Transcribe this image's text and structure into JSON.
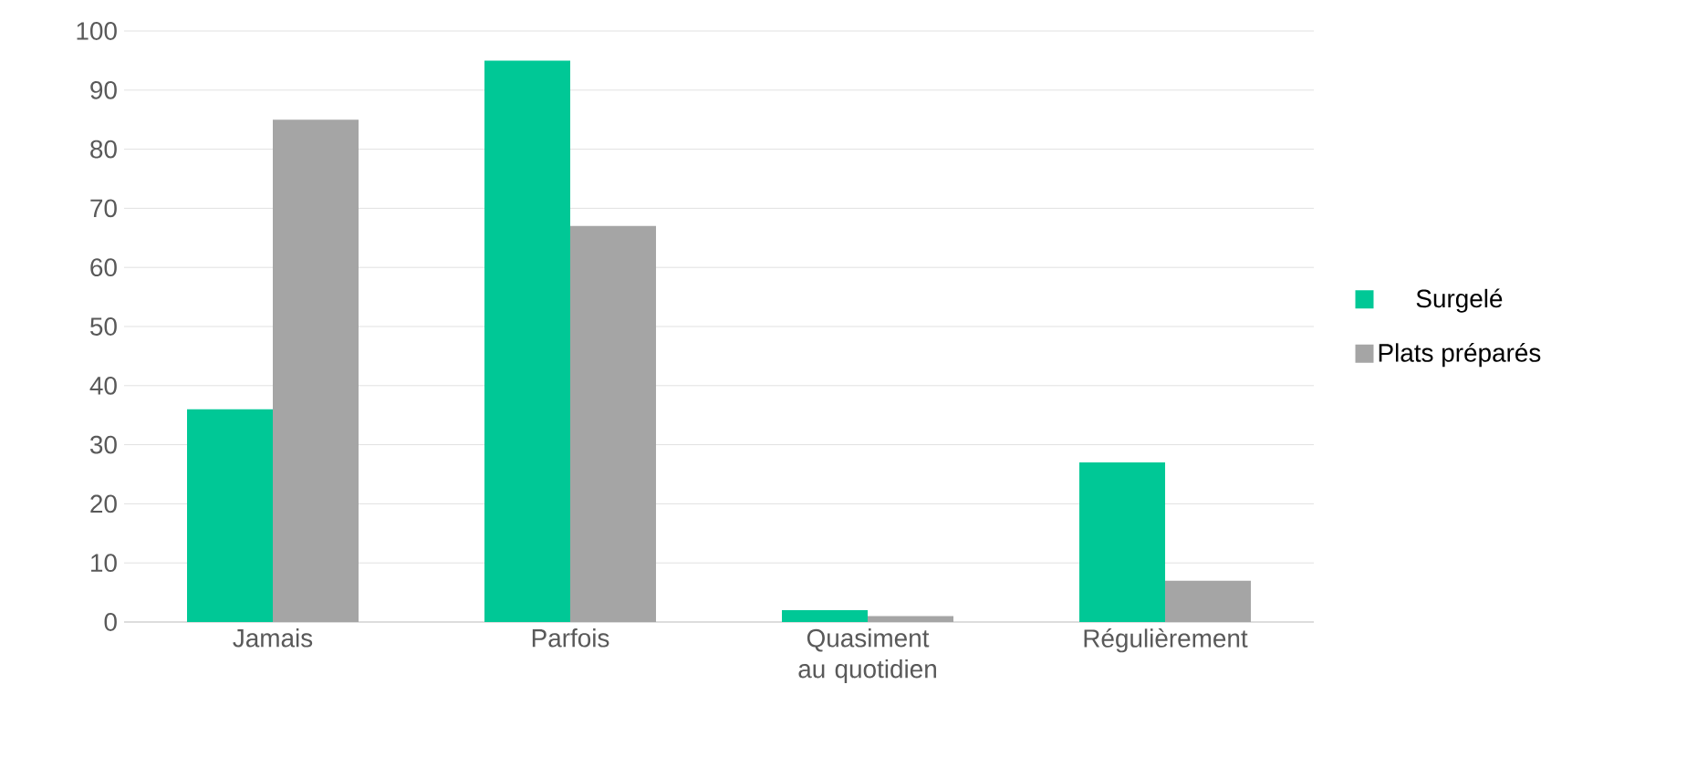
{
  "chart_data": {
    "type": "bar",
    "categories": [
      "Jamais",
      "Parfois",
      "Quasiment au quotidien",
      "Régulièrement"
    ],
    "series": [
      {
        "name": "Surgelé",
        "color": "#00c896",
        "values": [
          36,
          95,
          2,
          27
        ]
      },
      {
        "name": "Plats préparés",
        "color": "#a5a5a5",
        "values": [
          85,
          67,
          1,
          7
        ]
      }
    ],
    "ylim": [
      0,
      100
    ],
    "yticks": [
      0,
      10,
      20,
      30,
      40,
      50,
      60,
      70,
      80,
      90,
      100
    ],
    "grid": "y",
    "legend": "right"
  }
}
